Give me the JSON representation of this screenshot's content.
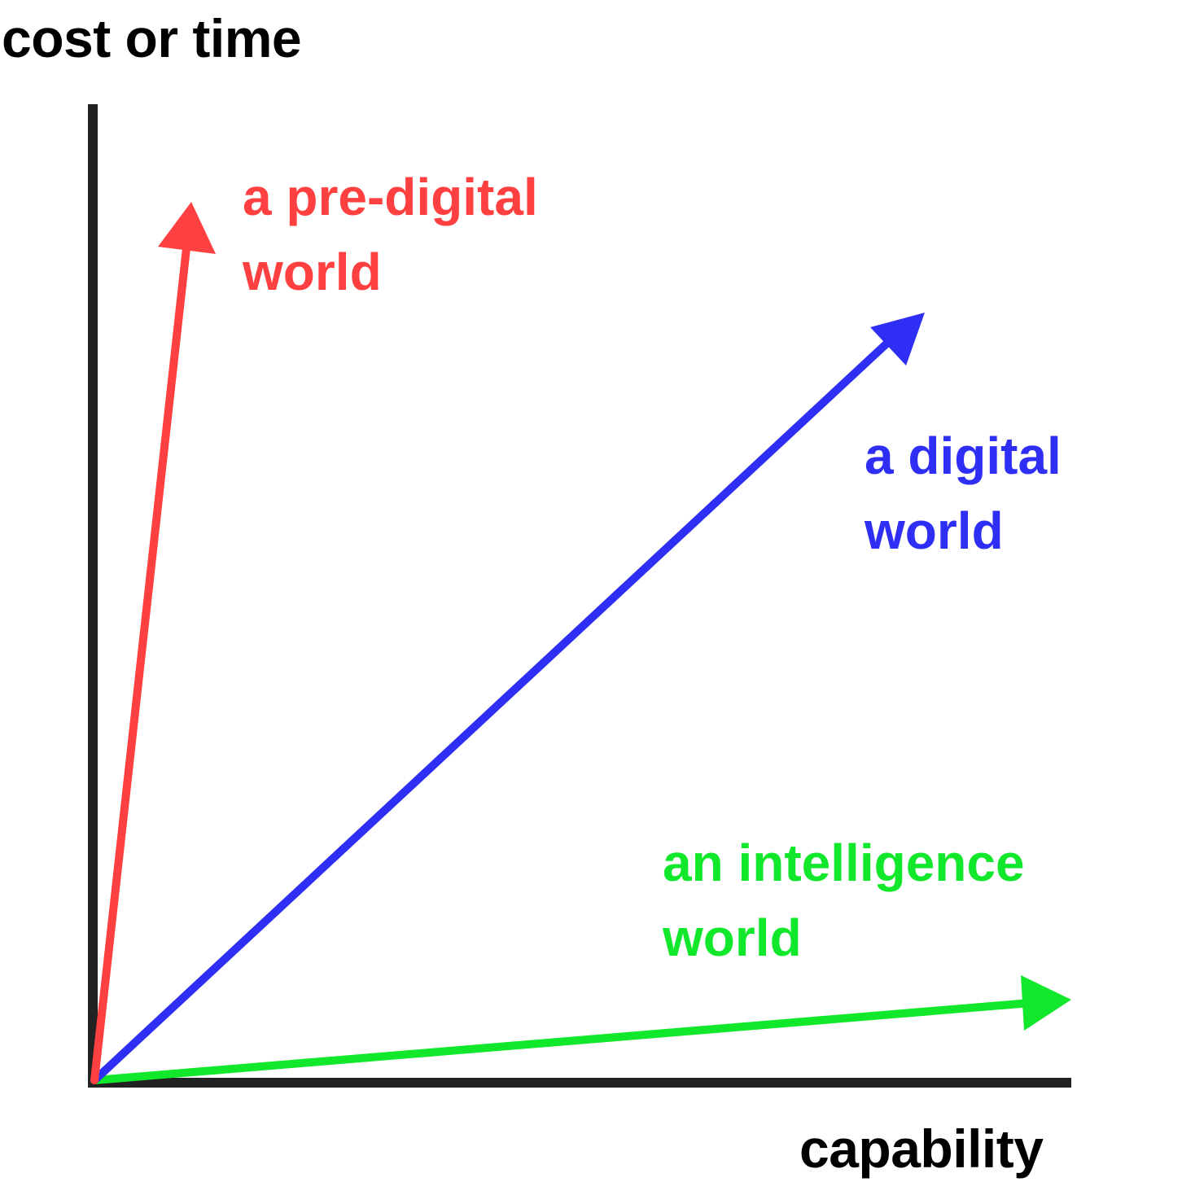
{
  "axes": {
    "y_label": "cost or time",
    "x_label": "capability",
    "color": "#222222"
  },
  "vectors": [
    {
      "id": "predigital",
      "label_line1": "a pre-digital",
      "label_line2": "world",
      "color": "#ff4040"
    },
    {
      "id": "digital",
      "label_line1": "a digital",
      "label_line2": "world",
      "color": "#2e2ef5"
    },
    {
      "id": "intelligence",
      "label_line1": "an intelligence",
      "label_line2": "world",
      "color": "#11e82b"
    }
  ]
}
